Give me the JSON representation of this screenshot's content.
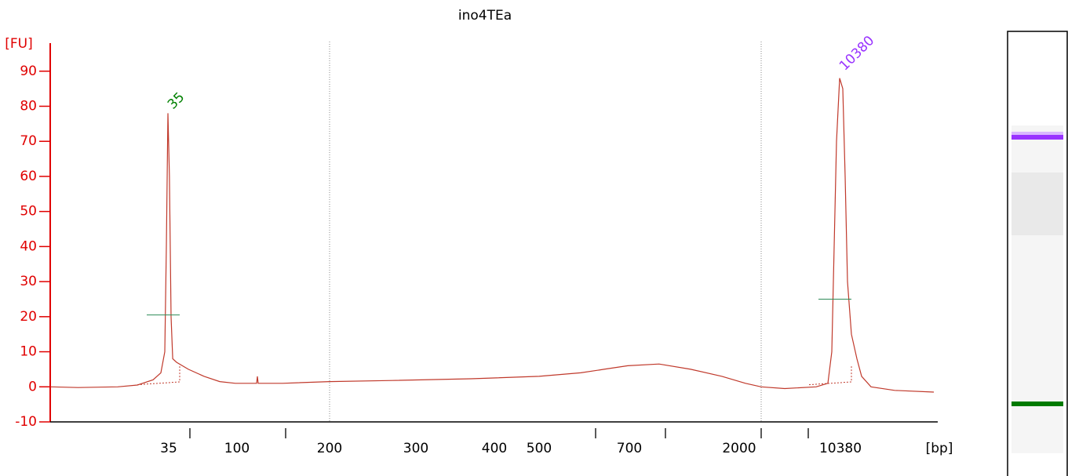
{
  "chart_data": {
    "type": "line",
    "title": "ino4TEa",
    "y_label": "[FU]",
    "x_label": "[bp]",
    "xlim": [
      6,
      47000
    ],
    "ylim": [
      -10,
      98
    ],
    "xticks": [
      35,
      100,
      200,
      300,
      400,
      500,
      700,
      2000,
      10380
    ],
    "yticks": [
      -10,
      0,
      10,
      20,
      30,
      40,
      50,
      60,
      70,
      80,
      90
    ],
    "axis_color": "#e00000",
    "series": [
      {
        "color": "#c0392b",
        "x": [
          6,
          9,
          16.3,
          21.9,
          27.7,
          31.1,
          33.0,
          33.8,
          34.6,
          35.4,
          36.3,
          37.2,
          39.5,
          47.3,
          60.3,
          76.7,
          97.6,
          115.8,
          116.5,
          117.2,
          140.6,
          200,
          268.7,
          367,
          500,
          584,
          637,
          696,
          930,
          1257,
          1696,
          2215,
          2859,
          4194,
          6988,
          8463,
          9022,
          9372,
          9739,
          10247,
          10782,
          11202,
          11636,
          12402,
          13549,
          14620,
          17023,
          24918,
          47000
        ],
        "values": [
          0,
          -0.2,
          0,
          0.5,
          2,
          4,
          10,
          40,
          78,
          60,
          20,
          8,
          7,
          5,
          3,
          1.5,
          1,
          1,
          3,
          1,
          1,
          1.5,
          1.8,
          2.3,
          3,
          4,
          5,
          6,
          6.5,
          5,
          3,
          1,
          0,
          -0.5,
          0,
          1,
          10,
          40,
          70,
          88,
          85,
          60,
          30,
          15,
          8,
          3,
          0,
          -1,
          -1.5
        ]
      }
    ],
    "peaks": [
      {
        "x": 35,
        "height": 78,
        "mid": 20.5,
        "color": "#008000"
      },
      {
        "x": 10380,
        "height": 89,
        "mid": 25,
        "color": "#9933ff"
      }
    ]
  }
}
